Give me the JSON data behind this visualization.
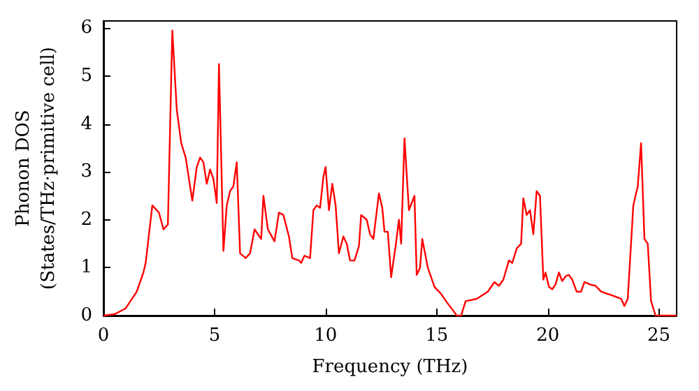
{
  "chart_data": {
    "type": "line",
    "xlabel": "Frequency (THz)",
    "ylabel": "Phonon DOS\n(States/THz·primitive cell)",
    "xlim": [
      0,
      25.8
    ],
    "ylim": [
      0,
      6.15
    ],
    "xticks": [
      0,
      5,
      10,
      15,
      20,
      25
    ],
    "yticks": [
      0,
      1,
      2,
      3,
      4,
      5,
      6
    ],
    "marker": "none",
    "line_style": "solid",
    "series": [
      {
        "color": "#ff0000",
        "x": [
          0,
          0.5,
          1,
          1.5,
          1.8,
          1.9,
          2.2,
          2.5,
          2.7,
          2.9,
          3.1,
          3.3,
          3.5,
          3.7,
          3.9,
          4.0,
          4.2,
          4.35,
          4.5,
          4.65,
          4.8,
          4.95,
          5.1,
          5.2,
          5.4,
          5.55,
          5.7,
          5.85,
          6.0,
          6.15,
          6.4,
          6.6,
          6.8,
          7.1,
          7.2,
          7.4,
          7.7,
          7.9,
          8.1,
          8.35,
          8.5,
          8.8,
          8.9,
          9.05,
          9.3,
          9.45,
          9.6,
          9.75,
          9.9,
          10.0,
          10.15,
          10.3,
          10.45,
          10.6,
          10.8,
          10.95,
          11.1,
          11.3,
          11.5,
          11.6,
          11.85,
          12.0,
          12.15,
          12.4,
          12.55,
          12.65,
          12.8,
          12.95,
          13.15,
          13.3,
          13.4,
          13.55,
          13.75,
          14.0,
          14.1,
          14.25,
          14.35,
          14.6,
          14.9,
          15.2,
          15.5,
          15.75,
          15.9,
          16.1,
          16.3,
          16.8,
          17.3,
          17.6,
          17.8,
          18.0,
          18.25,
          18.4,
          18.6,
          18.8,
          18.9,
          19.05,
          19.2,
          19.35,
          19.5,
          19.65,
          19.8,
          19.9,
          20.05,
          20.2,
          20.35,
          20.5,
          20.65,
          20.8,
          20.95,
          21.1,
          21.3,
          21.5,
          21.65,
          21.9,
          22.15,
          22.4,
          22.9,
          23.3,
          23.45,
          23.6,
          23.85,
          24.05,
          24.2,
          24.35,
          24.5,
          24.65,
          24.85,
          25.8
        ],
        "values": [
          0,
          0.03,
          0.15,
          0.5,
          0.9,
          1.1,
          2.3,
          2.15,
          1.8,
          1.9,
          5.95,
          4.3,
          3.6,
          3.3,
          2.7,
          2.4,
          3.1,
          3.3,
          3.2,
          2.75,
          3.05,
          2.85,
          2.35,
          5.25,
          1.35,
          2.3,
          2.6,
          2.7,
          3.2,
          1.3,
          1.2,
          1.3,
          1.8,
          1.6,
          2.5,
          1.8,
          1.55,
          2.15,
          2.1,
          1.65,
          1.2,
          1.15,
          1.1,
          1.25,
          1.2,
          2.2,
          2.3,
          2.25,
          2.9,
          3.1,
          2.2,
          2.75,
          2.3,
          1.3,
          1.65,
          1.5,
          1.15,
          1.15,
          1.45,
          2.1,
          2.0,
          1.7,
          1.6,
          2.55,
          2.25,
          1.75,
          1.75,
          0.8,
          1.45,
          2.0,
          1.5,
          3.7,
          2.2,
          2.5,
          0.85,
          1.0,
          1.6,
          1.0,
          0.6,
          0.45,
          0.25,
          0.1,
          0,
          0,
          0.3,
          0.35,
          0.5,
          0.7,
          0.62,
          0.75,
          1.15,
          1.1,
          1.4,
          1.5,
          2.45,
          2.1,
          2.2,
          1.7,
          2.6,
          2.5,
          0.75,
          0.9,
          0.6,
          0.55,
          0.65,
          0.9,
          0.72,
          0.82,
          0.85,
          0.75,
          0.5,
          0.5,
          0.7,
          0.65,
          0.62,
          0.5,
          0.42,
          0.35,
          0.2,
          0.35,
          2.3,
          2.7,
          3.6,
          1.6,
          1.5,
          0.3,
          0,
          0
        ]
      }
    ]
  }
}
